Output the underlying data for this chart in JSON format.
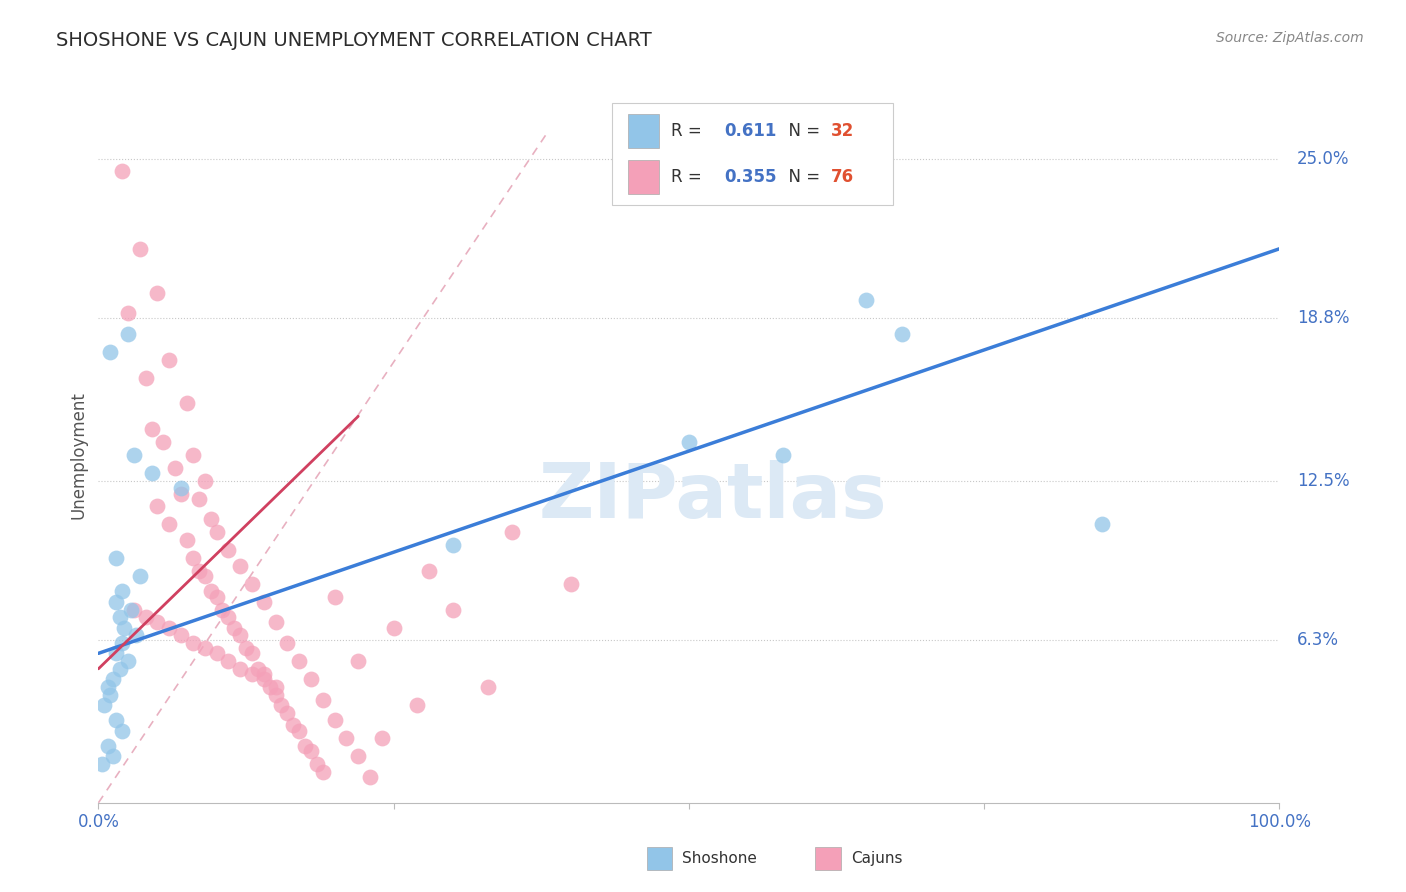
{
  "title": "SHOSHONE VS CAJUN UNEMPLOYMENT CORRELATION CHART",
  "source": "Source: ZipAtlas.com",
  "ylabel": "Unemployment",
  "xlim": [
    0,
    100
  ],
  "ylim": [
    0,
    27
  ],
  "ytick_vals": [
    6.3,
    12.5,
    18.8,
    25.0
  ],
  "ytick_labels": [
    "6.3%",
    "12.5%",
    "18.8%",
    "25.0%"
  ],
  "xtick_labels": [
    "0.0%",
    "100.0%"
  ],
  "legend_R_blue": "0.611",
  "legend_N_blue": "32",
  "legend_R_pink": "0.355",
  "legend_N_pink": "76",
  "shoshone_color": "#92c5e8",
  "cajun_color": "#f4a0b8",
  "shoshone_pts": [
    [
      1.0,
      17.5
    ],
    [
      2.5,
      18.2
    ],
    [
      3.0,
      13.5
    ],
    [
      4.5,
      12.8
    ],
    [
      7.0,
      12.2
    ],
    [
      1.5,
      9.5
    ],
    [
      3.5,
      8.8
    ],
    [
      2.0,
      8.2
    ],
    [
      1.5,
      7.8
    ],
    [
      2.8,
      7.5
    ],
    [
      1.8,
      7.2
    ],
    [
      2.2,
      6.8
    ],
    [
      3.2,
      6.5
    ],
    [
      2.0,
      6.2
    ],
    [
      1.5,
      5.8
    ],
    [
      2.5,
      5.5
    ],
    [
      1.8,
      5.2
    ],
    [
      1.2,
      4.8
    ],
    [
      0.8,
      4.5
    ],
    [
      1.0,
      4.2
    ],
    [
      0.5,
      3.8
    ],
    [
      1.5,
      3.2
    ],
    [
      2.0,
      2.8
    ],
    [
      0.8,
      2.2
    ],
    [
      1.2,
      1.8
    ],
    [
      0.3,
      1.5
    ],
    [
      50,
      14.0
    ],
    [
      58,
      13.5
    ],
    [
      65,
      19.5
    ],
    [
      68,
      18.2
    ],
    [
      85,
      10.8
    ],
    [
      30,
      10.0
    ]
  ],
  "cajun_pts": [
    [
      2.0,
      24.5
    ],
    [
      3.5,
      21.5
    ],
    [
      5.0,
      19.8
    ],
    [
      2.5,
      19.0
    ],
    [
      6.0,
      17.2
    ],
    [
      4.0,
      16.5
    ],
    [
      7.5,
      15.5
    ],
    [
      4.5,
      14.5
    ],
    [
      5.5,
      14.0
    ],
    [
      8.0,
      13.5
    ],
    [
      6.5,
      13.0
    ],
    [
      9.0,
      12.5
    ],
    [
      7.0,
      12.0
    ],
    [
      8.5,
      11.8
    ],
    [
      5.0,
      11.5
    ],
    [
      9.5,
      11.0
    ],
    [
      6.0,
      10.8
    ],
    [
      10.0,
      10.5
    ],
    [
      7.5,
      10.2
    ],
    [
      11.0,
      9.8
    ],
    [
      8.0,
      9.5
    ],
    [
      12.0,
      9.2
    ],
    [
      8.5,
      9.0
    ],
    [
      9.0,
      8.8
    ],
    [
      13.0,
      8.5
    ],
    [
      9.5,
      8.2
    ],
    [
      10.0,
      8.0
    ],
    [
      14.0,
      7.8
    ],
    [
      10.5,
      7.5
    ],
    [
      11.0,
      7.2
    ],
    [
      15.0,
      7.0
    ],
    [
      11.5,
      6.8
    ],
    [
      12.0,
      6.5
    ],
    [
      16.0,
      6.2
    ],
    [
      12.5,
      6.0
    ],
    [
      13.0,
      5.8
    ],
    [
      17.0,
      5.5
    ],
    [
      13.5,
      5.2
    ],
    [
      14.0,
      5.0
    ],
    [
      18.0,
      4.8
    ],
    [
      14.5,
      4.5
    ],
    [
      15.0,
      4.2
    ],
    [
      19.0,
      4.0
    ],
    [
      15.5,
      3.8
    ],
    [
      16.0,
      3.5
    ],
    [
      20.0,
      3.2
    ],
    [
      16.5,
      3.0
    ],
    [
      17.0,
      2.8
    ],
    [
      21.0,
      2.5
    ],
    [
      17.5,
      2.2
    ],
    [
      18.0,
      2.0
    ],
    [
      22.0,
      1.8
    ],
    [
      18.5,
      1.5
    ],
    [
      19.0,
      1.2
    ],
    [
      23.0,
      1.0
    ],
    [
      3.0,
      7.5
    ],
    [
      4.0,
      7.2
    ],
    [
      5.0,
      7.0
    ],
    [
      6.0,
      6.8
    ],
    [
      7.0,
      6.5
    ],
    [
      8.0,
      6.2
    ],
    [
      9.0,
      6.0
    ],
    [
      10.0,
      5.8
    ],
    [
      11.0,
      5.5
    ],
    [
      12.0,
      5.2
    ],
    [
      13.0,
      5.0
    ],
    [
      14.0,
      4.8
    ],
    [
      15.0,
      4.5
    ],
    [
      35.0,
      10.5
    ],
    [
      40.0,
      8.5
    ],
    [
      28.0,
      9.0
    ],
    [
      25.0,
      6.8
    ],
    [
      22.0,
      5.5
    ],
    [
      20.0,
      8.0
    ],
    [
      30.0,
      7.5
    ],
    [
      33.0,
      4.5
    ],
    [
      27.0,
      3.8
    ],
    [
      24.0,
      2.5
    ]
  ],
  "blue_line_x": [
    0,
    100
  ],
  "blue_line_y": [
    5.8,
    21.5
  ],
  "pink_line_x": [
    0,
    22
  ],
  "pink_line_y": [
    5.2,
    15.0
  ],
  "dash_line_x": [
    0,
    38
  ],
  "dash_line_y": [
    0,
    26
  ],
  "blue_line_color": "#3b7dd8",
  "pink_line_color": "#d04060",
  "dash_line_color": "#e8b0c0",
  "background_color": "#ffffff",
  "grid_color": "#c8c8c8",
  "title_color": "#2c2c2c",
  "axis_color": "#4472c4",
  "source_color": "#888888",
  "ylabel_color": "#555555",
  "watermark_color": "#dce9f5"
}
